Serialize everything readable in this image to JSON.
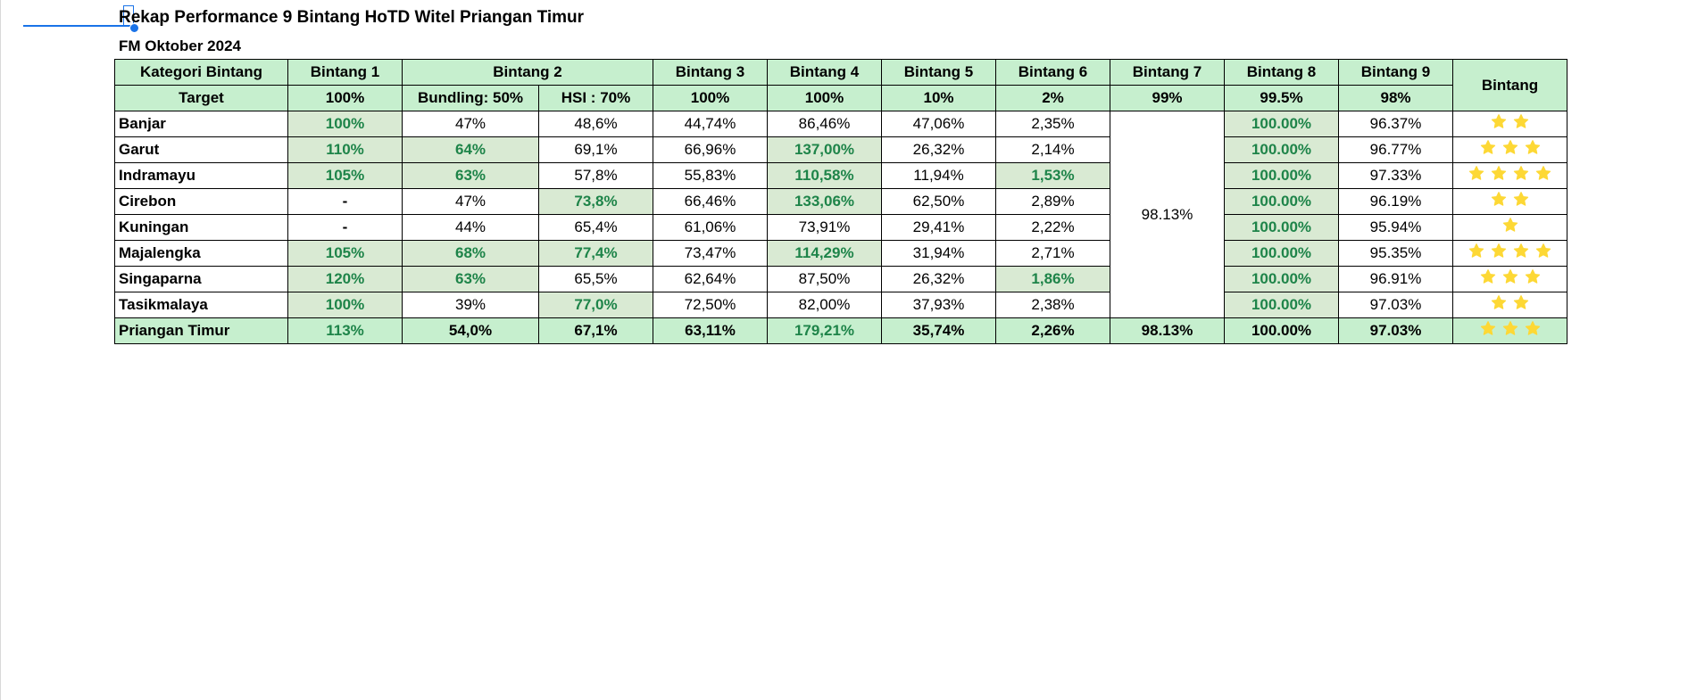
{
  "title": "Rekap Performance 9 Bintang HoTD Witel Priangan Timur",
  "subtitle": "FM Oktober 2024",
  "colors": {
    "header_fill": "#c6efce",
    "highlight_fill": "#d9ead3",
    "highlight_text": "#1e8449",
    "star": "#fdd835",
    "selection": "#1a73e8"
  },
  "header": {
    "kategori": "Kategori Bintang",
    "b1": "Bintang 1",
    "b2": "Bintang 2",
    "b3": "Bintang 3",
    "b4": "Bintang 4",
    "b5": "Bintang 5",
    "b6": "Bintang 6",
    "b7": "Bintang 7",
    "b8": "Bintang 8",
    "b9": "Bintang 9",
    "bintang": "Bintang"
  },
  "target": {
    "label": "Target",
    "b1": "100%",
    "b2_bundling": "Bundling: 50%",
    "b2_hsi": "HSI : 70%",
    "b3": "100%",
    "b4": "100%",
    "b5": "10%",
    "b6": "2%",
    "b7": "99%",
    "b8": "99.5%",
    "b9": "98%"
  },
  "bintang7_merged": "98.13%",
  "star_icon": "star-icon",
  "rows": [
    {
      "name": "Banjar",
      "b1": "100%",
      "bund": "47%",
      "hsi": "48,6%",
      "b3": "44,74%",
      "b4": "86,46%",
      "b5": "47,06%",
      "b6": "2,35%",
      "b8": "100.00%",
      "b9": "96.37%",
      "stars": 2
    },
    {
      "name": "Garut",
      "b1": "110%",
      "bund": "64%",
      "hsi": "69,1%",
      "b3": "66,96%",
      "b4": "137,00%",
      "b5": "26,32%",
      "b6": "2,14%",
      "b8": "100.00%",
      "b9": "96.77%",
      "stars": 3
    },
    {
      "name": "Indramayu",
      "b1": "105%",
      "bund": "63%",
      "hsi": "57,8%",
      "b3": "55,83%",
      "b4": "110,58%",
      "b5": "11,94%",
      "b6": "1,53%",
      "b8": "100.00%",
      "b9": "97.33%",
      "stars": 4
    },
    {
      "name": "Cirebon",
      "b1": "-",
      "bund": "47%",
      "hsi": "73,8%",
      "b3": "66,46%",
      "b4": "133,06%",
      "b5": "62,50%",
      "b6": "2,89%",
      "b8": "100.00%",
      "b9": "96.19%",
      "stars": 2
    },
    {
      "name": "Kuningan",
      "b1": "-",
      "bund": "44%",
      "hsi": "65,4%",
      "b3": "61,06%",
      "b4": "73,91%",
      "b5": "29,41%",
      "b6": "2,22%",
      "b8": "100.00%",
      "b9": "95.94%",
      "stars": 1
    },
    {
      "name": "Majalengka",
      "b1": "105%",
      "bund": "68%",
      "hsi": "77,4%",
      "b3": "73,47%",
      "b4": "114,29%",
      "b5": "31,94%",
      "b6": "2,71%",
      "b8": "100.00%",
      "b9": "95.35%",
      "stars": 4
    },
    {
      "name": "Singaparna",
      "b1": "120%",
      "bund": "63%",
      "hsi": "65,5%",
      "b3": "62,64%",
      "b4": "87,50%",
      "b5": "26,32%",
      "b6": "1,86%",
      "b8": "100.00%",
      "b9": "96.91%",
      "stars": 3
    },
    {
      "name": "Tasikmalaya",
      "b1": "100%",
      "bund": "39%",
      "hsi": "77,0%",
      "b3": "72,50%",
      "b4": "82,00%",
      "b5": "37,93%",
      "b6": "2,38%",
      "b8": "100.00%",
      "b9": "97.03%",
      "stars": 2
    }
  ],
  "total": {
    "name": "Priangan Timur",
    "b1": "113%",
    "bund": "54,0%",
    "hsi": "67,1%",
    "b3": "63,11%",
    "b4": "179,21%",
    "b5": "35,74%",
    "b6": "2,26%",
    "b7": "98.13%",
    "b8": "100.00%",
    "b9": "97.03%",
    "stars": 3
  }
}
